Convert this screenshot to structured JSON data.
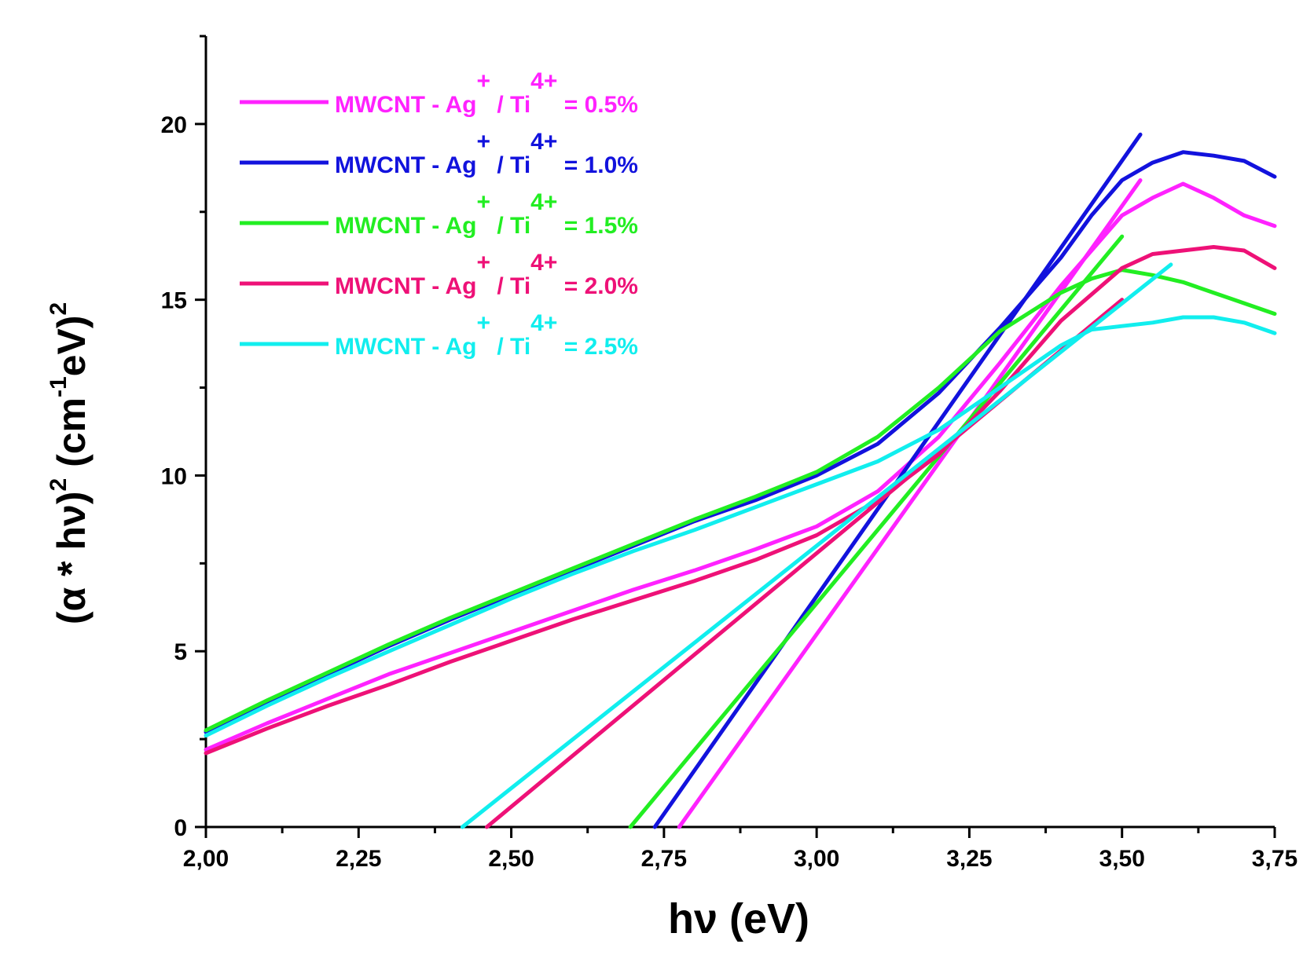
{
  "chart_data": {
    "type": "line",
    "xlabel": "hν (eV)",
    "ylabel": {
      "prefix": "(α * hν)",
      "exp1": "2",
      "unit": " (cm",
      "unit_exp": "-1",
      "unit_tail": "eV)",
      "exp2": "2"
    },
    "xlim": [
      2.0,
      3.75
    ],
    "ylim": [
      0,
      22.5
    ],
    "xticks": [
      2.0,
      2.25,
      2.5,
      2.75,
      3.0,
      3.25,
      3.5,
      3.75
    ],
    "xtick_labels": [
      "2,00",
      "2,25",
      "2,50",
      "2,75",
      "3,00",
      "3,25",
      "3,50",
      "3,75"
    ],
    "yticks": [
      0,
      5,
      10,
      15,
      20
    ],
    "ytick_labels": [
      "0",
      "5",
      "10",
      "15",
      "20"
    ],
    "legend_position": "top-left",
    "series": [
      {
        "name": "0.5%",
        "color": "#ff22ff",
        "legend": {
          "a": "MWCNT - Ag",
          "sup1": "+",
          "b": " / Ti",
          "sup2": "4+",
          "c": " = 0.5%"
        },
        "x": [
          2.0,
          2.1,
          2.2,
          2.3,
          2.4,
          2.5,
          2.6,
          2.7,
          2.8,
          2.9,
          3.0,
          3.1,
          3.2,
          3.3,
          3.4,
          3.5,
          3.55,
          3.6,
          3.65,
          3.7,
          3.75
        ],
        "y": [
          2.2,
          2.95,
          3.65,
          4.35,
          4.95,
          5.55,
          6.15,
          6.75,
          7.3,
          7.9,
          8.55,
          9.55,
          11.1,
          13.2,
          15.4,
          17.4,
          17.9,
          18.3,
          17.9,
          17.4,
          17.1
        ],
        "fit": {
          "x": [
            2.775,
            3.53
          ],
          "y": [
            0,
            18.4
          ]
        }
      },
      {
        "name": "1.0%",
        "color": "#1212dd",
        "legend": {
          "a": "MWCNT - Ag",
          "sup1": "+",
          "b": " / Ti",
          "sup2": "4+",
          "c": " = 1.0%"
        },
        "x": [
          2.0,
          2.1,
          2.2,
          2.3,
          2.4,
          2.5,
          2.6,
          2.7,
          2.8,
          2.9,
          3.0,
          3.1,
          3.2,
          3.3,
          3.4,
          3.45,
          3.5,
          3.55,
          3.6,
          3.65,
          3.7,
          3.75
        ],
        "y": [
          2.7,
          3.55,
          4.35,
          5.15,
          5.9,
          6.6,
          7.3,
          8.0,
          8.7,
          9.3,
          10.0,
          10.9,
          12.35,
          14.2,
          16.2,
          17.4,
          18.4,
          18.9,
          19.2,
          19.1,
          18.95,
          18.5
        ],
        "fit": {
          "x": [
            2.735,
            3.53
          ],
          "y": [
            0,
            19.7
          ]
        }
      },
      {
        "name": "1.5%",
        "color": "#22ee22",
        "legend": {
          "a": "MWCNT - Ag",
          "sup1": "+",
          "b": " / Ti",
          "sup2": "4+",
          "c": " = 1.5%"
        },
        "x": [
          2.0,
          2.1,
          2.2,
          2.3,
          2.4,
          2.5,
          2.6,
          2.7,
          2.8,
          2.9,
          3.0,
          3.1,
          3.2,
          3.3,
          3.4,
          3.45,
          3.5,
          3.55,
          3.6,
          3.65,
          3.7,
          3.75
        ],
        "y": [
          2.75,
          3.6,
          4.4,
          5.2,
          5.95,
          6.65,
          7.35,
          8.05,
          8.75,
          9.4,
          10.1,
          11.1,
          12.5,
          14.1,
          15.2,
          15.6,
          15.85,
          15.7,
          15.5,
          15.2,
          14.9,
          14.6
        ],
        "fit": {
          "x": [
            2.695,
            3.5
          ],
          "y": [
            0,
            16.8
          ]
        }
      },
      {
        "name": "2.0%",
        "color": "#ee1177",
        "legend": {
          "a": "MWCNT - Ag",
          "sup1": "+",
          "b": " / Ti",
          "sup2": "4+",
          "c": " = 2.0%"
        },
        "x": [
          2.0,
          2.1,
          2.2,
          2.3,
          2.4,
          2.5,
          2.6,
          2.7,
          2.8,
          2.9,
          3.0,
          3.1,
          3.2,
          3.3,
          3.4,
          3.5,
          3.55,
          3.6,
          3.65,
          3.7,
          3.75
        ],
        "y": [
          2.1,
          2.8,
          3.45,
          4.05,
          4.7,
          5.3,
          5.9,
          6.45,
          7.0,
          7.6,
          8.3,
          9.3,
          10.6,
          12.4,
          14.4,
          15.9,
          16.3,
          16.4,
          16.5,
          16.4,
          15.9
        ],
        "fit": {
          "x": [
            2.46,
            3.5
          ],
          "y": [
            0,
            15.0
          ]
        }
      },
      {
        "name": "2.5%",
        "color": "#11eeee",
        "legend": {
          "a": "MWCNT - Ag",
          "sup1": "+",
          "b": " / Ti",
          "sup2": "4+",
          "c": " = 2.5%"
        },
        "x": [
          2.0,
          2.1,
          2.2,
          2.3,
          2.4,
          2.5,
          2.6,
          2.7,
          2.8,
          2.9,
          3.0,
          3.1,
          3.2,
          3.3,
          3.4,
          3.45,
          3.5,
          3.55,
          3.6,
          3.65,
          3.7,
          3.75
        ],
        "y": [
          2.6,
          3.45,
          4.25,
          5.0,
          5.75,
          6.5,
          7.2,
          7.85,
          8.45,
          9.1,
          9.75,
          10.4,
          11.3,
          12.5,
          13.7,
          14.15,
          14.25,
          14.35,
          14.5,
          14.5,
          14.35,
          14.05
        ],
        "fit": {
          "x": [
            2.42,
            3.58
          ],
          "y": [
            0,
            16.0
          ]
        }
      }
    ]
  }
}
